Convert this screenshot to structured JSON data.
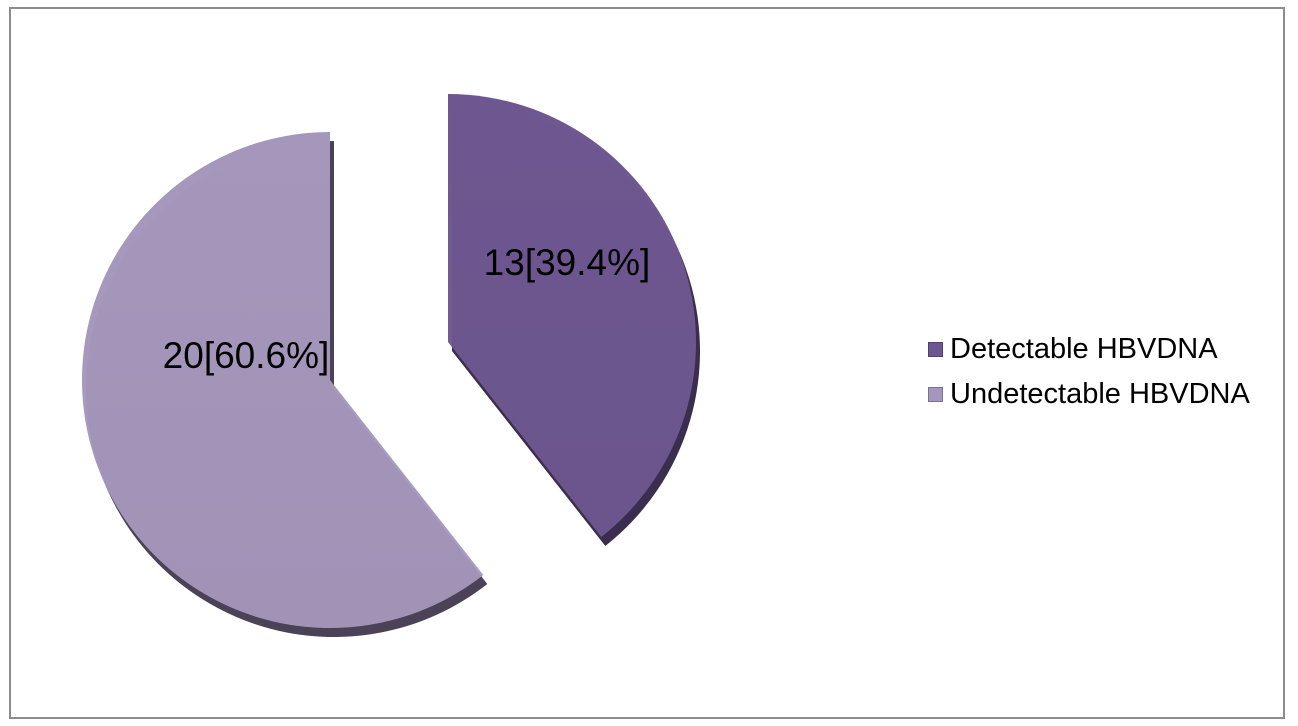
{
  "chart_data": {
    "type": "pie",
    "title": "",
    "slices": [
      {
        "name": "Detectable HBVDNA",
        "value": 13,
        "percent": 39.4,
        "label": "13[39.4%]",
        "color": "#6e5790",
        "side_color": "#3a2d4e"
      },
      {
        "name": "Undetectable HBVDNA",
        "value": 20,
        "percent": 60.6,
        "label": "20[60.6%]",
        "color": "#a597bb",
        "side_color": "#4b4258"
      }
    ],
    "legend": {
      "placement": "right",
      "entries": [
        "Detectable HBVDNA",
        "Undetectable HBVDNA"
      ]
    },
    "exploded": true,
    "style": "3d-pie"
  }
}
